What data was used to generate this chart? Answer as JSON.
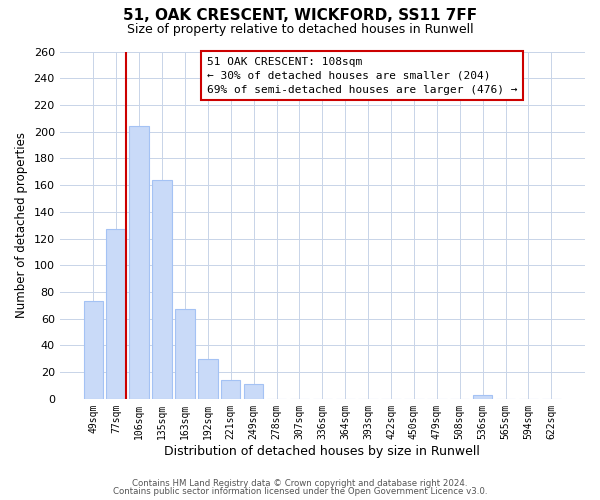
{
  "title": "51, OAK CRESCENT, WICKFORD, SS11 7FF",
  "subtitle": "Size of property relative to detached houses in Runwell",
  "xlabel": "Distribution of detached houses by size in Runwell",
  "ylabel": "Number of detached properties",
  "bar_labels": [
    "49sqm",
    "77sqm",
    "106sqm",
    "135sqm",
    "163sqm",
    "192sqm",
    "221sqm",
    "249sqm",
    "278sqm",
    "307sqm",
    "336sqm",
    "364sqm",
    "393sqm",
    "422sqm",
    "450sqm",
    "479sqm",
    "508sqm",
    "536sqm",
    "565sqm",
    "594sqm",
    "622sqm"
  ],
  "bar_heights": [
    73,
    127,
    204,
    164,
    67,
    30,
    14,
    11,
    0,
    0,
    0,
    0,
    0,
    0,
    0,
    0,
    0,
    3,
    0,
    0,
    0
  ],
  "bar_color": "#c9daf8",
  "bar_edge_color": "#a4c2f4",
  "vline_color": "#cc0000",
  "ylim": [
    0,
    260
  ],
  "yticks": [
    0,
    20,
    40,
    60,
    80,
    100,
    120,
    140,
    160,
    180,
    200,
    220,
    240,
    260
  ],
  "annotation_title": "51 OAK CRESCENT: 108sqm",
  "annotation_line1": "← 30% of detached houses are smaller (204)",
  "annotation_line2": "69% of semi-detached houses are larger (476) →",
  "annotation_box_facecolor": "#ffffff",
  "annotation_box_edgecolor": "#cc0000",
  "footer_line1": "Contains HM Land Registry data © Crown copyright and database right 2024.",
  "footer_line2": "Contains public sector information licensed under the Open Government Licence v3.0.",
  "background_color": "#ffffff",
  "grid_color": "#c8d4e8"
}
